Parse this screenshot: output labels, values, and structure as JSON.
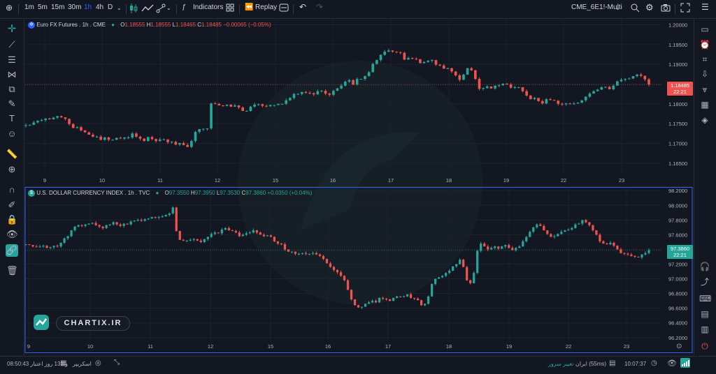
{
  "toolbar": {
    "intervals": [
      "1m",
      "5m",
      "15m",
      "30m",
      "1h",
      "4h",
      "D"
    ],
    "active_interval": "1h",
    "indicators_label": "Indicators",
    "replay_label": "Replay",
    "symbol_label": "CME_6E1!-Multi"
  },
  "colors": {
    "up": "#26a69a",
    "down": "#ef5350",
    "background": "#131722",
    "grid": "#1e222d",
    "accent_blue": "#2962ff"
  },
  "pane1": {
    "title": "Euro FX Futures . 1h . CME",
    "o_label": "O",
    "o_value": "1.18555",
    "h_label": "H",
    "h_value": "1.18555",
    "l_label": "L",
    "l_value": "1.18465",
    "c_label": "C",
    "c_value": "1.18485",
    "change": "−0.00065 (−0.05%)",
    "last_price": "1.18485",
    "last_time": "22:21",
    "axis_ticks": [
      "1.20000",
      "1.19500",
      "1.19000",
      "1.18500",
      "1.18000",
      "1.17500",
      "1.17000",
      "1.16500"
    ]
  },
  "pane2": {
    "title": "U.S. DOLLAR CURRENCY INDEX . 1h . TVC",
    "o_label": "O",
    "o_value": "97.3550",
    "h_label": "H",
    "h_value": "97.3950",
    "l_label": "L",
    "l_value": "97.3530",
    "c_label": "C",
    "c_value": "97.3860",
    "change": "+0.0350 (+0.04%)",
    "last_price": "97.3860",
    "last_time": "22:21",
    "axis_ticks": [
      "98.2000",
      "98.0000",
      "97.8000",
      "97.6000",
      "97.4000",
      "97.2000",
      "97.0000",
      "96.8000",
      "96.6000",
      "96.4000",
      "96.2000"
    ]
  },
  "time_axis_top": [
    "9",
    "10",
    "11",
    "12",
    "15",
    "16",
    "17",
    "18",
    "19",
    "22",
    "23"
  ],
  "time_axis_bottom": [
    "9",
    "10",
    "11",
    "12",
    "15",
    "16",
    "17",
    "18",
    "19",
    "22",
    "23"
  ],
  "watermark": "CHARTIX.IR",
  "status_bar": {
    "left_text": "08:50:43 و 133 روز اعتبار",
    "screener": "اسکریپر",
    "server_change": "تغییر سرور",
    "server": "ایران (55ms)",
    "clock": "10:07:37"
  },
  "chart_data": [
    {
      "type": "candlestick",
      "title": "Euro FX Futures . 1h . CME",
      "ylim": [
        1.1625,
        1.2015
      ],
      "x_ticks": [
        "9",
        "10",
        "11",
        "12",
        "15",
        "16",
        "17",
        "18",
        "19",
        "22",
        "23"
      ],
      "closes": [
        1.1746,
        1.1747,
        1.1753,
        1.1757,
        1.1759,
        1.1763,
        1.1761,
        1.1765,
        1.1769,
        1.1766,
        1.1762,
        1.1749,
        1.1739,
        1.1741,
        1.1733,
        1.1728,
        1.1722,
        1.1717,
        1.1717,
        1.1709,
        1.1715,
        1.1709,
        1.1709,
        1.1714,
        1.1712,
        1.1715,
        1.1715,
        1.1725,
        1.1717,
        1.1712,
        1.1706,
        1.1716,
        1.1711,
        1.1706,
        1.171,
        1.171,
        1.1703,
        1.1704,
        1.1697,
        1.1701,
        1.1696,
        1.1691,
        1.1706,
        1.1729,
        1.1736,
        1.1737,
        1.1738,
        1.1801,
        1.18,
        1.1796,
        1.1795,
        1.1798,
        1.1793,
        1.1796,
        1.1791,
        1.1782,
        1.1782,
        1.1793,
        1.1798,
        1.1799,
        1.1795,
        1.1794,
        1.1797,
        1.1797,
        1.18,
        1.18,
        1.1809,
        1.1815,
        1.1825,
        1.1825,
        1.183,
        1.1828,
        1.1827,
        1.1824,
        1.1832,
        1.1833,
        1.1826,
        1.1823,
        1.1833,
        1.1839,
        1.1846,
        1.1856,
        1.186,
        1.1849,
        1.1863,
        1.1863,
        1.187,
        1.188,
        1.1901,
        1.1911,
        1.1924,
        1.1932,
        1.1935,
        1.1932,
        1.1931,
        1.1929,
        1.1912,
        1.1916,
        1.1914,
        1.1913,
        1.1903,
        1.1906,
        1.1909,
        1.1911,
        1.1899,
        1.1897,
        1.1889,
        1.189,
        1.1882,
        1.1872,
        1.1861,
        1.1874,
        1.189,
        1.1885,
        1.1863,
        1.1838,
        1.184,
        1.1844,
        1.1839,
        1.1846,
        1.1847,
        1.1851,
        1.1849,
        1.1841,
        1.1842,
        1.1842,
        1.1832,
        1.1821,
        1.1812,
        1.1815,
        1.1807,
        1.1801,
        1.1812,
        1.181,
        1.1808,
        1.18,
        1.1799,
        1.1801,
        1.1799,
        1.1801,
        1.1803,
        1.1809,
        1.1818,
        1.1826,
        1.1832,
        1.1836,
        1.1842,
        1.1843,
        1.1837,
        1.1846,
        1.1857,
        1.1861,
        1.1863,
        1.1864,
        1.187,
        1.1874,
        1.1871,
        1.1862,
        1.1849
      ]
    },
    {
      "type": "candlestick",
      "title": "U.S. DOLLAR CURRENCY INDEX . 1h . TVC",
      "ylim": [
        96.16,
        98.24
      ],
      "x_ticks": [
        "9",
        "10",
        "11",
        "12",
        "15",
        "16",
        "17",
        "18",
        "19",
        "22",
        "23"
      ],
      "closes": [
        97.47,
        97.46,
        97.44,
        97.43,
        97.44,
        97.45,
        97.42,
        97.43,
        97.45,
        97.44,
        97.49,
        97.55,
        97.58,
        97.66,
        97.71,
        97.73,
        97.72,
        97.74,
        97.75,
        97.76,
        97.73,
        97.71,
        97.69,
        97.73,
        97.74,
        97.77,
        97.74,
        97.72,
        97.75,
        97.74,
        97.78,
        97.79,
        97.8,
        97.79,
        97.81,
        97.82,
        97.84,
        97.83,
        97.84,
        97.85,
        97.87,
        97.89,
        97.97,
        97.65,
        97.53,
        97.52,
        97.52,
        97.53,
        97.54,
        97.52,
        97.5,
        97.54,
        97.57,
        97.61,
        97.63,
        97.62,
        97.67,
        97.69,
        97.66,
        97.65,
        97.63,
        97.58,
        97.6,
        97.62,
        97.63,
        97.66,
        97.63,
        97.6,
        97.58,
        97.59,
        97.57,
        97.51,
        97.48,
        97.47,
        97.4,
        97.37,
        97.37,
        97.34,
        97.34,
        97.35,
        97.34,
        97.34,
        97.35,
        97.33,
        97.31,
        97.27,
        97.21,
        97.16,
        97.12,
        97.09,
        97.04,
        96.98,
        96.85,
        96.72,
        96.64,
        96.61,
        96.62,
        96.66,
        96.68,
        96.7,
        96.68,
        96.74,
        96.73,
        96.72,
        96.7,
        96.74,
        96.76,
        96.75,
        96.76,
        96.79,
        96.74,
        96.73,
        96.71,
        96.64,
        96.66,
        96.76,
        96.93,
        97.0,
        97.02,
        97.04,
        97.08,
        97.11,
        97.17,
        97.2,
        97.26,
        97.16,
        96.98,
        96.94,
        97.08,
        97.38,
        97.48,
        97.44,
        97.4,
        97.42,
        97.44,
        97.41,
        97.44,
        97.46,
        97.42,
        97.39,
        97.42,
        97.44,
        97.51,
        97.57,
        97.64,
        97.7,
        97.74,
        97.72,
        97.66,
        97.61,
        97.57,
        97.58,
        97.61,
        97.64,
        97.66,
        97.67,
        97.69,
        97.74,
        97.75,
        97.8,
        97.77,
        97.73,
        97.66,
        97.6,
        97.51,
        97.48,
        97.47,
        97.49,
        97.45,
        97.4,
        97.35,
        97.34,
        97.33,
        97.31,
        97.3,
        97.29,
        97.33,
        97.35,
        97.39
      ]
    }
  ]
}
